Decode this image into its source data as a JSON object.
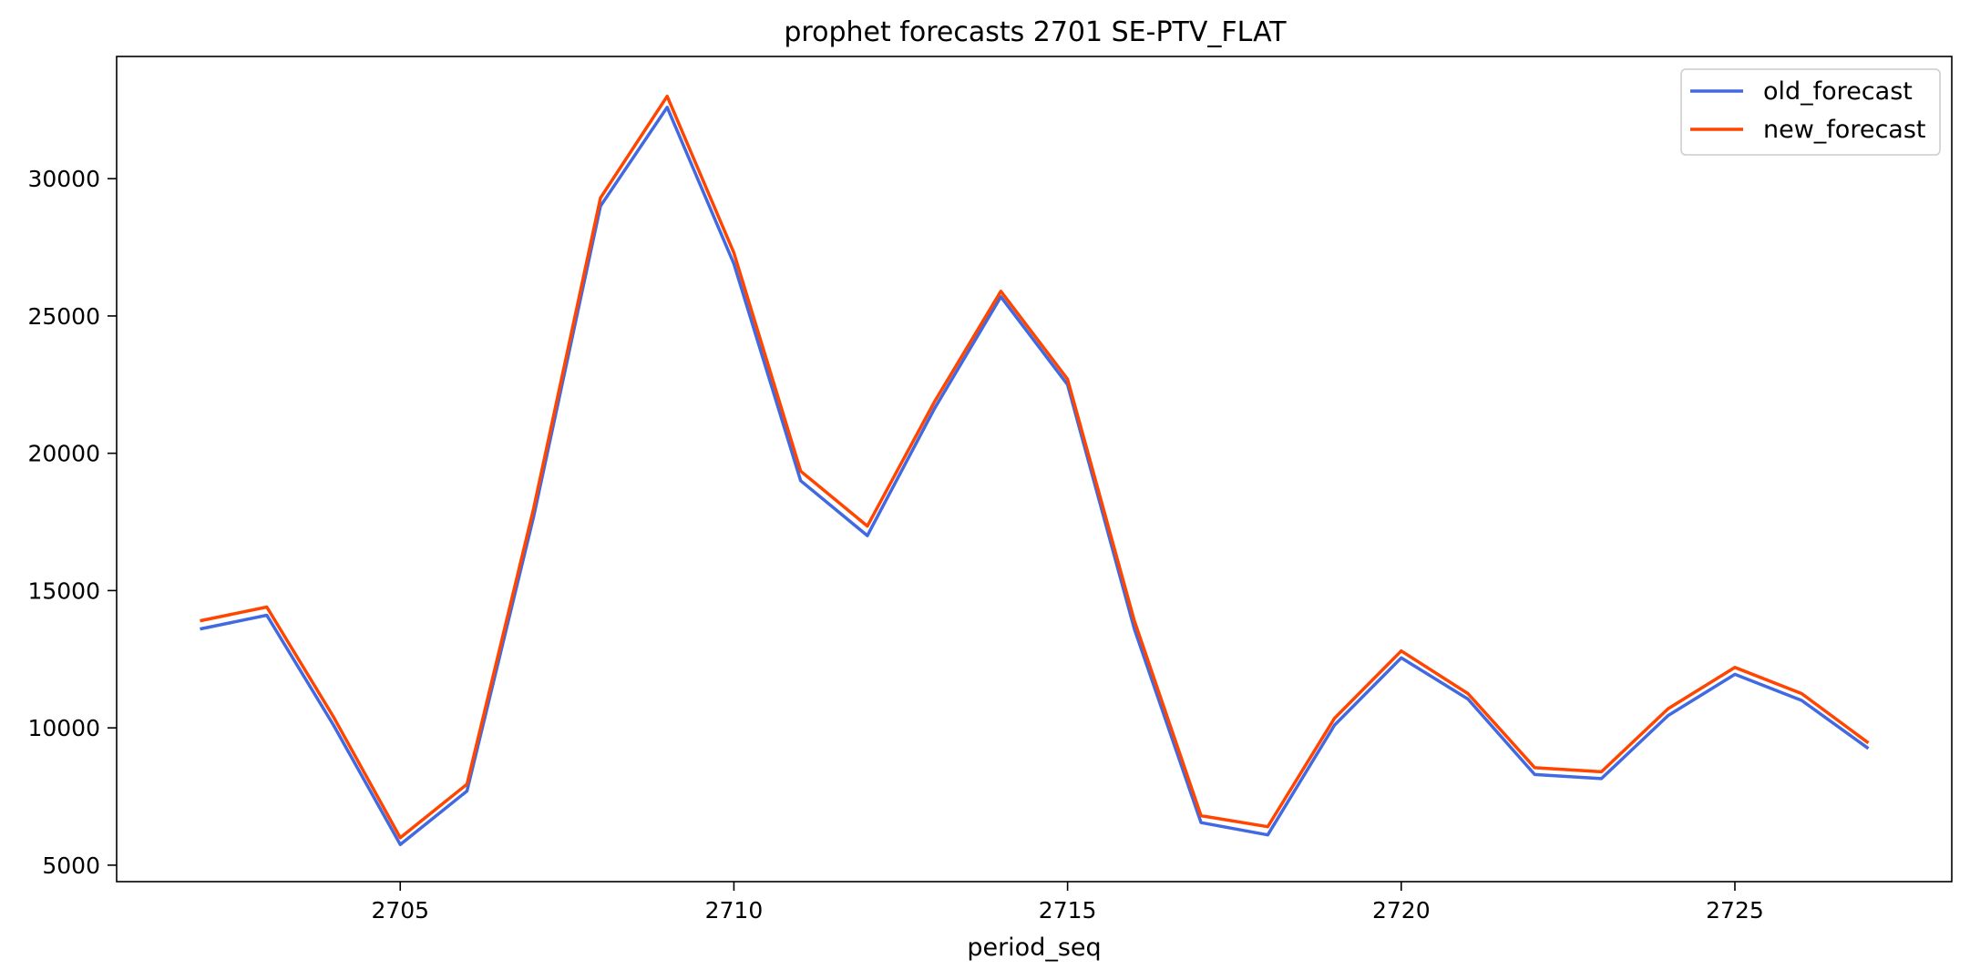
{
  "chart_data": {
    "type": "line",
    "title": "prophet forecasts 2701 SE-PTV_FLAT",
    "xlabel": "period_seq",
    "ylabel": "",
    "x": [
      2702,
      2703,
      2704,
      2705,
      2706,
      2707,
      2708,
      2709,
      2710,
      2711,
      2712,
      2713,
      2714,
      2715,
      2716,
      2717,
      2718,
      2719,
      2720,
      2721,
      2722,
      2723,
      2724,
      2725,
      2726,
      2727
    ],
    "series": [
      {
        "name": "old_forecast",
        "color": "#4169e1",
        "values": [
          13600,
          14100,
          10100,
          5750,
          7700,
          17700,
          29000,
          32600,
          26900,
          19000,
          17000,
          21600,
          25700,
          22500,
          13600,
          6550,
          6100,
          10100,
          12550,
          11050,
          8300,
          8150,
          10450,
          11950,
          11000,
          9250
        ]
      },
      {
        "name": "new_forecast",
        "color": "#ff4500",
        "values": [
          13900,
          14400,
          10400,
          6000,
          7950,
          18000,
          29300,
          33000,
          27300,
          19350,
          17350,
          21850,
          25900,
          22700,
          13900,
          6800,
          6400,
          10350,
          12800,
          11250,
          8550,
          8400,
          10700,
          12200,
          11250,
          9450
        ]
      }
    ],
    "x_ticks": [
      2705,
      2710,
      2715,
      2720,
      2725
    ],
    "y_ticks": [
      5000,
      10000,
      15000,
      20000,
      25000,
      30000
    ],
    "xlim": [
      2700.75,
      2728.25
    ],
    "ylim": [
      4400,
      34450
    ],
    "grid": false,
    "legend_position": "top-right"
  }
}
